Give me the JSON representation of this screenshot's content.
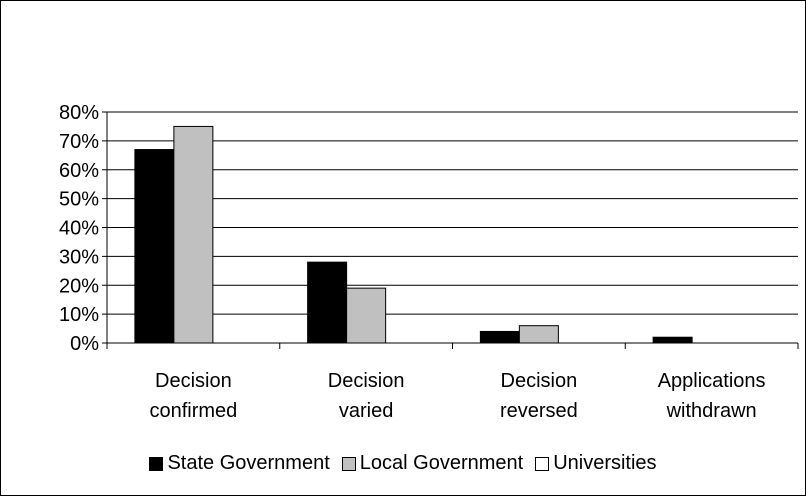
{
  "chart_data": {
    "type": "bar",
    "title": "",
    "xlabel": "",
    "ylabel": "",
    "categories": [
      [
        "Decision",
        "confirmed"
      ],
      [
        "Decision",
        "varied"
      ],
      [
        "Decision",
        "reversed"
      ],
      [
        "Applications",
        "withdrawn"
      ]
    ],
    "series": [
      {
        "name": "State Government",
        "color": "#000000",
        "values": [
          67,
          28,
          4,
          2
        ]
      },
      {
        "name": "Local Government",
        "color": "#c0c0c0",
        "values": [
          75,
          19,
          6,
          0
        ]
      },
      {
        "name": "Universities",
        "color": "#ffffff",
        "values": [
          0,
          0,
          0,
          0
        ]
      }
    ],
    "ylim": [
      0,
      80
    ],
    "yticks": [
      0,
      10,
      20,
      30,
      40,
      50,
      60,
      70,
      80
    ],
    "ytick_labels": [
      "0%",
      "10%",
      "20%",
      "30%",
      "40%",
      "50%",
      "60%",
      "70%",
      "80%"
    ],
    "grid": true,
    "legend_position": "bottom"
  }
}
